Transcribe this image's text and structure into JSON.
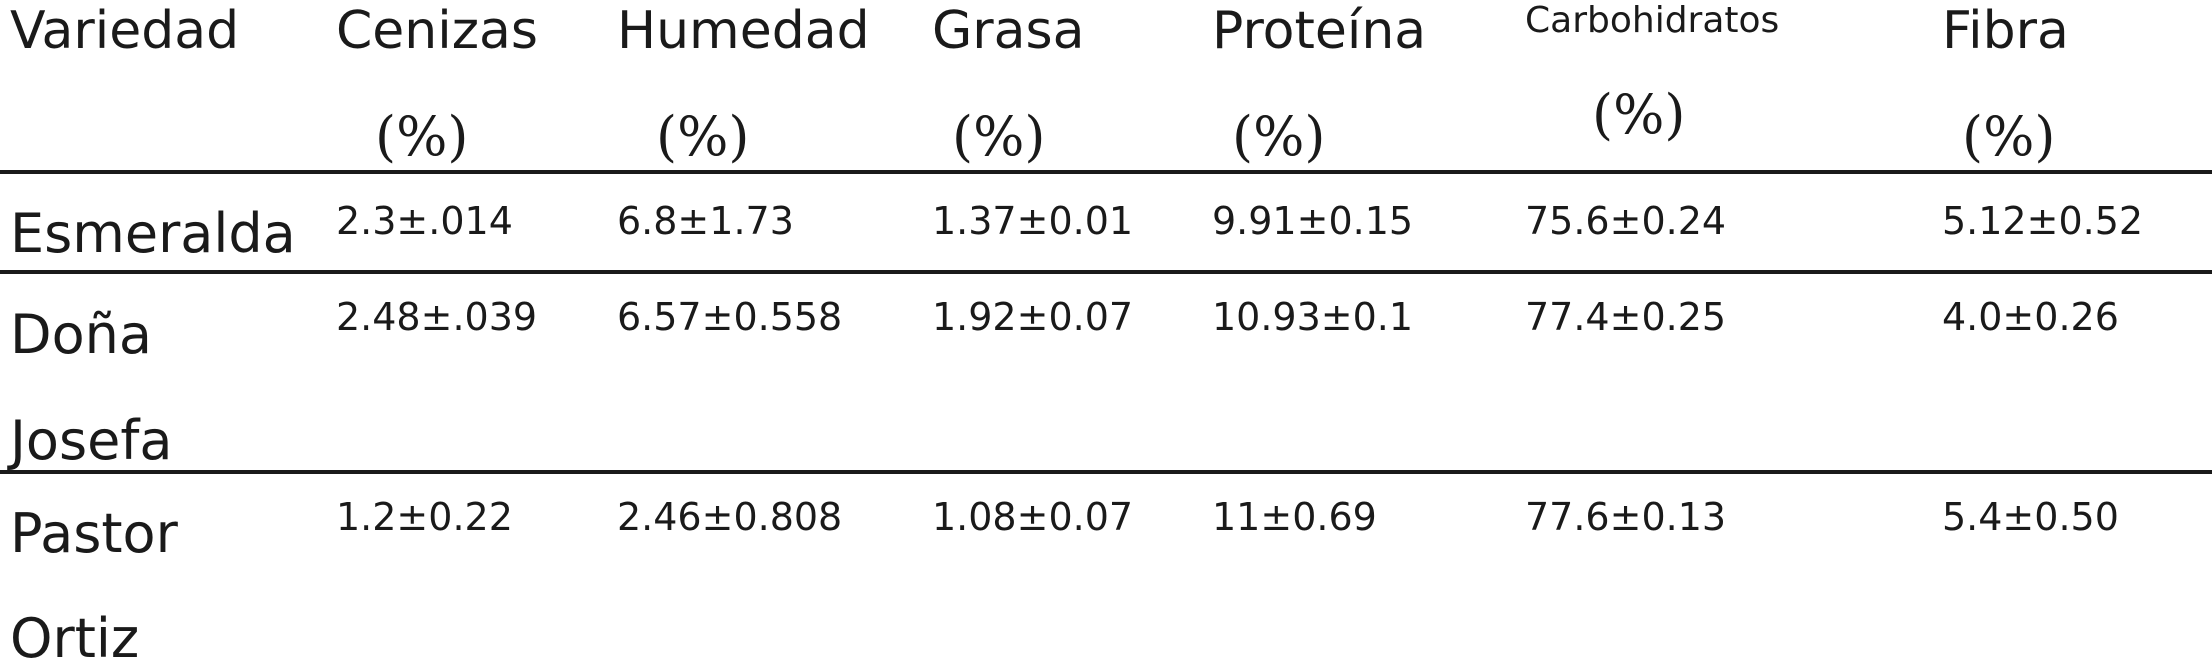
{
  "table": {
    "headers": [
      {
        "name": "Variedad",
        "unit": ""
      },
      {
        "name": "Cenizas",
        "unit": "(%)"
      },
      {
        "name": "Humedad",
        "unit": "(%)"
      },
      {
        "name": "Grasa",
        "unit": "(%)"
      },
      {
        "name": "Proteína",
        "unit": "(%)"
      },
      {
        "name": "Carbohidratos",
        "unit": "(%)"
      },
      {
        "name": "Fibra",
        "unit": "(%)"
      }
    ],
    "rows": [
      {
        "label_lines": [
          "Esmeralda"
        ],
        "values": [
          "2.3±.014",
          "6.8±1.73",
          "1.37±0.01",
          "9.91±0.15",
          "75.6±0.24",
          "5.12±0.52"
        ]
      },
      {
        "label_lines": [
          "Doña",
          "Josefa"
        ],
        "values": [
          "2.48±.039",
          "6.57±0.558",
          "1.92±0.07",
          "10.93±0.1",
          "77.4±0.25",
          "4.0±0.26"
        ]
      },
      {
        "label_lines": [
          "Pastor",
          "Ortiz"
        ],
        "values": [
          "1.2±0.22",
          "2.46±0.808",
          "1.08±0.07",
          "11±0.69",
          "77.6±0.13",
          "5.4±0.50"
        ]
      }
    ]
  }
}
